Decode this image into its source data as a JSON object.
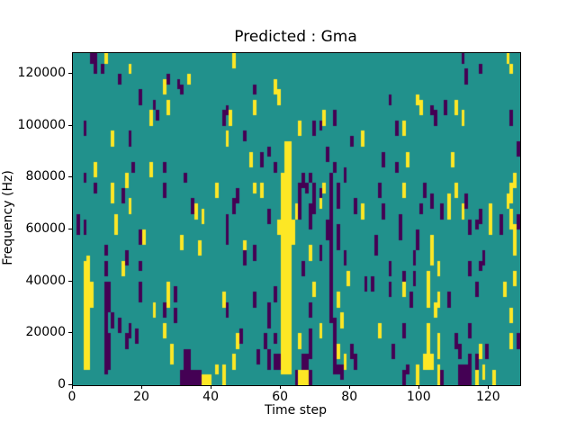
{
  "figure": {
    "title": "Predicted : Gma",
    "xlabel": "Time step",
    "ylabel": "Frequency (Hz)"
  },
  "chart_data": {
    "type": "heatmap",
    "title": "Predicted : Gma",
    "xlabel": "Time step",
    "ylabel": "Frequency (Hz)",
    "x_range": [
      0,
      129
    ],
    "y_range": [
      0,
      128000
    ],
    "x_ticks": [
      0,
      20,
      40,
      60,
      80,
      100,
      120
    ],
    "y_ticks": [
      0,
      20000,
      40000,
      60000,
      80000,
      100000,
      120000
    ],
    "grid": {
      "cols": 129,
      "rows": 64
    },
    "legend_position": "none",
    "gridlines": false,
    "colormap": "viridis (3 discrete levels)",
    "colors": {
      "0": "#440154",
      "1": "#21918c",
      "2": "#fde725"
    },
    "default_value": 1,
    "value_meaning": {
      "0": "low (purple)",
      "1": "mid (teal background)",
      "2": "high (yellow)"
    },
    "runs_format": "[col, row_start, row_end, value]; rows indexed from top (row 0 = 128000 Hz bin), inclusive; cols indexed from left (time step)",
    "runs": [
      [
        5,
        0,
        1,
        0
      ],
      [
        6,
        0,
        1,
        0
      ],
      [
        9,
        0,
        1,
        2
      ],
      [
        6,
        2,
        3,
        0
      ],
      [
        8,
        2,
        3,
        0
      ],
      [
        16,
        2,
        3,
        2
      ],
      [
        13,
        4,
        5,
        0
      ],
      [
        27,
        4,
        5,
        0
      ],
      [
        33,
        4,
        5,
        2
      ],
      [
        30,
        5,
        6,
        0
      ],
      [
        26,
        5,
        7,
        2
      ],
      [
        31,
        6,
        7,
        0
      ],
      [
        19,
        7,
        9,
        0
      ],
      [
        23,
        9,
        10,
        0
      ],
      [
        27,
        9,
        11,
        2
      ],
      [
        22,
        11,
        13,
        2
      ],
      [
        24,
        11,
        12,
        0
      ],
      [
        43,
        11,
        13,
        0
      ],
      [
        3,
        13,
        15,
        0
      ],
      [
        11,
        15,
        17,
        2
      ],
      [
        16,
        15,
        17,
        0
      ],
      [
        6,
        21,
        23,
        2
      ],
      [
        17,
        21,
        22,
        0
      ],
      [
        22,
        21,
        23,
        2
      ],
      [
        26,
        21,
        22,
        0
      ],
      [
        3,
        23,
        24,
        0
      ],
      [
        15,
        23,
        25,
        2
      ],
      [
        32,
        23,
        24,
        0
      ],
      [
        6,
        25,
        26,
        0
      ],
      [
        11,
        25,
        28,
        2
      ],
      [
        26,
        25,
        27,
        0
      ],
      [
        14,
        26,
        28,
        0
      ],
      [
        41,
        25,
        27,
        2
      ],
      [
        16,
        28,
        30,
        2
      ],
      [
        34,
        28,
        30,
        0
      ],
      [
        35,
        29,
        31,
        2
      ],
      [
        37,
        30,
        32,
        2
      ],
      [
        46,
        0,
        2,
        2
      ],
      [
        52,
        6,
        7,
        0
      ],
      [
        58,
        5,
        7,
        2
      ],
      [
        59,
        7,
        9,
        2
      ],
      [
        44,
        10,
        11,
        0
      ],
      [
        52,
        9,
        11,
        2
      ],
      [
        45,
        11,
        13,
        2
      ],
      [
        72,
        11,
        13,
        2
      ],
      [
        75,
        11,
        13,
        0
      ],
      [
        65,
        13,
        15,
        2
      ],
      [
        69,
        13,
        15,
        0
      ],
      [
        71,
        13,
        14,
        0
      ],
      [
        44,
        15,
        17,
        2
      ],
      [
        49,
        15,
        16,
        0
      ],
      [
        80,
        16,
        17,
        0
      ],
      [
        83,
        15,
        17,
        2
      ],
      [
        61,
        17,
        61,
        2
      ],
      [
        62,
        17,
        61,
        2
      ],
      [
        60,
        23,
        61,
        2
      ],
      [
        59,
        32,
        34,
        2
      ],
      [
        63,
        32,
        36,
        2
      ],
      [
        51,
        19,
        21,
        2
      ],
      [
        54,
        19,
        21,
        0
      ],
      [
        56,
        18,
        19,
        0
      ],
      [
        73,
        18,
        20,
        0
      ],
      [
        58,
        21,
        22,
        0
      ],
      [
        75,
        21,
        22,
        0
      ],
      [
        78,
        22,
        24,
        0
      ],
      [
        74,
        23,
        51,
        0
      ],
      [
        66,
        23,
        25,
        0
      ],
      [
        68,
        23,
        24,
        0
      ],
      [
        65,
        25,
        31,
        0
      ],
      [
        67,
        25,
        26,
        0
      ],
      [
        72,
        25,
        26,
        2
      ],
      [
        69,
        25,
        30,
        0
      ],
      [
        52,
        25,
        26,
        2
      ],
      [
        54,
        25,
        27,
        2
      ],
      [
        47,
        26,
        28,
        0
      ],
      [
        71,
        26,
        28,
        0
      ],
      [
        71,
        28,
        29,
        2
      ],
      [
        76,
        25,
        29,
        0
      ],
      [
        46,
        28,
        30,
        0
      ],
      [
        64,
        29,
        31,
        2
      ],
      [
        68,
        29,
        33,
        0
      ],
      [
        81,
        28,
        30,
        0
      ],
      [
        83,
        29,
        31,
        2
      ],
      [
        56,
        30,
        32,
        0
      ],
      [
        44,
        31,
        34,
        0
      ],
      [
        112,
        0,
        1,
        0
      ],
      [
        125,
        0,
        1,
        2
      ],
      [
        117,
        2,
        3,
        0
      ],
      [
        126,
        2,
        3,
        2
      ],
      [
        113,
        3,
        5,
        0
      ],
      [
        91,
        8,
        9,
        0
      ],
      [
        99,
        8,
        9,
        2
      ],
      [
        100,
        9,
        11,
        2
      ],
      [
        103,
        10,
        11,
        0
      ],
      [
        107,
        9,
        11,
        0
      ],
      [
        110,
        9,
        11,
        2
      ],
      [
        104,
        11,
        13,
        0
      ],
      [
        112,
        11,
        13,
        2
      ],
      [
        126,
        11,
        13,
        0
      ],
      [
        93,
        13,
        15,
        0
      ],
      [
        95,
        13,
        15,
        2
      ],
      [
        128,
        17,
        19,
        0
      ],
      [
        89,
        19,
        21,
        0
      ],
      [
        96,
        19,
        21,
        2
      ],
      [
        109,
        19,
        21,
        2
      ],
      [
        93,
        21,
        22,
        0
      ],
      [
        127,
        23,
        25,
        2
      ],
      [
        88,
        25,
        27,
        0
      ],
      [
        95,
        25,
        27,
        2
      ],
      [
        101,
        25,
        27,
        0
      ],
      [
        110,
        25,
        27,
        2
      ],
      [
        126,
        25,
        28,
        2
      ],
      [
        103,
        27,
        29,
        0
      ],
      [
        108,
        27,
        31,
        2
      ],
      [
        113,
        27,
        29,
        0
      ],
      [
        125,
        27,
        29,
        2
      ],
      [
        100,
        29,
        30,
        0
      ],
      [
        106,
        29,
        31,
        0
      ],
      [
        112,
        29,
        31,
        2
      ],
      [
        117,
        30,
        32,
        0
      ],
      [
        89,
        29,
        31,
        0
      ],
      [
        120,
        29,
        34,
        2
      ],
      [
        123,
        31,
        34,
        0
      ],
      [
        126,
        30,
        33,
        2
      ],
      [
        128,
        31,
        33,
        0
      ],
      [
        1,
        31,
        34,
        0
      ],
      [
        3,
        32,
        34,
        0
      ],
      [
        12,
        31,
        34,
        2
      ],
      [
        19,
        34,
        36,
        0
      ],
      [
        20,
        34,
        36,
        2
      ],
      [
        31,
        35,
        37,
        2
      ],
      [
        9,
        37,
        38,
        0
      ],
      [
        36,
        36,
        38,
        2
      ],
      [
        15,
        38,
        40,
        0
      ],
      [
        4,
        39,
        60,
        2
      ],
      [
        3,
        40,
        60,
        2
      ],
      [
        5,
        44,
        48,
        2
      ],
      [
        9,
        40,
        42,
        0
      ],
      [
        14,
        40,
        42,
        2
      ],
      [
        19,
        40,
        41,
        0
      ],
      [
        9,
        44,
        51,
        0
      ],
      [
        10,
        44,
        49,
        0
      ],
      [
        19,
        44,
        47,
        0
      ],
      [
        27,
        44,
        46,
        2
      ],
      [
        29,
        45,
        47,
        0
      ],
      [
        27,
        47,
        48,
        2
      ],
      [
        23,
        48,
        50,
        2
      ],
      [
        26,
        48,
        50,
        0
      ],
      [
        29,
        49,
        51,
        0
      ],
      [
        11,
        50,
        52,
        0
      ],
      [
        13,
        51,
        53,
        0
      ],
      [
        9,
        52,
        54,
        0
      ],
      [
        16,
        52,
        54,
        0
      ],
      [
        26,
        52,
        54,
        2
      ],
      [
        18,
        53,
        55,
        0
      ],
      [
        15,
        54,
        56,
        0
      ],
      [
        9,
        54,
        61,
        0
      ],
      [
        10,
        54,
        57,
        0
      ],
      [
        28,
        56,
        59,
        2
      ],
      [
        32,
        57,
        60,
        0
      ],
      [
        33,
        57,
        60,
        0
      ],
      [
        10,
        57,
        60,
        0
      ],
      [
        31,
        61,
        63,
        0
      ],
      [
        32,
        61,
        63,
        0
      ],
      [
        33,
        61,
        63,
        0
      ],
      [
        34,
        61,
        63,
        0
      ],
      [
        35,
        61,
        63,
        0
      ],
      [
        36,
        61,
        63,
        0
      ],
      [
        37,
        62,
        63,
        2
      ],
      [
        38,
        62,
        63,
        2
      ],
      [
        39,
        62,
        63,
        2
      ],
      [
        41,
        60,
        61,
        2
      ],
      [
        73,
        32,
        35,
        0
      ],
      [
        76,
        33,
        37,
        0
      ],
      [
        75,
        51,
        61,
        0
      ],
      [
        44,
        34,
        36,
        0
      ],
      [
        49,
        36,
        38,
        2
      ],
      [
        52,
        37,
        39,
        0
      ],
      [
        49,
        38,
        40,
        0
      ],
      [
        68,
        37,
        39,
        2
      ],
      [
        71,
        37,
        39,
        0
      ],
      [
        78,
        38,
        40,
        0
      ],
      [
        66,
        40,
        42,
        0
      ],
      [
        79,
        42,
        44,
        2
      ],
      [
        84,
        43,
        45,
        0
      ],
      [
        86,
        43,
        45,
        0
      ],
      [
        58,
        45,
        47,
        0
      ],
      [
        69,
        44,
        46,
        2
      ],
      [
        76,
        46,
        48,
        2
      ],
      [
        52,
        46,
        48,
        0
      ],
      [
        43,
        46,
        48,
        2
      ],
      [
        56,
        48,
        50,
        0
      ],
      [
        44,
        48,
        50,
        0
      ],
      [
        68,
        48,
        50,
        0
      ],
      [
        77,
        50,
        52,
        2
      ],
      [
        56,
        50,
        52,
        0
      ],
      [
        71,
        52,
        54,
        2
      ],
      [
        68,
        53,
        58,
        0
      ],
      [
        48,
        53,
        55,
        0
      ],
      [
        47,
        54,
        56,
        2
      ],
      [
        55,
        54,
        56,
        0
      ],
      [
        58,
        54,
        55,
        0
      ],
      [
        65,
        54,
        56,
        2
      ],
      [
        76,
        56,
        58,
        2
      ],
      [
        80,
        56,
        58,
        0
      ],
      [
        53,
        57,
        59,
        0
      ],
      [
        56,
        57,
        60,
        0
      ],
      [
        58,
        58,
        60,
        0
      ],
      [
        59,
        58,
        60,
        0
      ],
      [
        46,
        58,
        60,
        2
      ],
      [
        66,
        58,
        60,
        0
      ],
      [
        67,
        58,
        60,
        0
      ],
      [
        78,
        58,
        60,
        2
      ],
      [
        81,
        58,
        60,
        0
      ],
      [
        75,
        60,
        61,
        0
      ],
      [
        76,
        60,
        61,
        0
      ],
      [
        77,
        60,
        62,
        0
      ],
      [
        64,
        61,
        63,
        0
      ],
      [
        65,
        61,
        63,
        2
      ],
      [
        66,
        61,
        63,
        2
      ],
      [
        67,
        61,
        63,
        2
      ],
      [
        68,
        61,
        63,
        0
      ],
      [
        43,
        60,
        63,
        2
      ],
      [
        94,
        31,
        35,
        0
      ],
      [
        114,
        32,
        34,
        0
      ],
      [
        116,
        32,
        33,
        0
      ],
      [
        87,
        35,
        38,
        0
      ],
      [
        99,
        34,
        37,
        0
      ],
      [
        103,
        35,
        37,
        2
      ],
      [
        127,
        33,
        38,
        2
      ],
      [
        98,
        38,
        40,
        0
      ],
      [
        103,
        38,
        40,
        2
      ],
      [
        118,
        38,
        40,
        0
      ],
      [
        91,
        40,
        42,
        0
      ],
      [
        105,
        40,
        42,
        2
      ],
      [
        114,
        40,
        42,
        0
      ],
      [
        117,
        40,
        41,
        0
      ],
      [
        95,
        42,
        44,
        0
      ],
      [
        98,
        42,
        44,
        0
      ],
      [
        95,
        44,
        46,
        2
      ],
      [
        102,
        42,
        48,
        2
      ],
      [
        91,
        44,
        46,
        0
      ],
      [
        97,
        46,
        48,
        0
      ],
      [
        105,
        46,
        48,
        2
      ],
      [
        108,
        46,
        48,
        0
      ],
      [
        116,
        44,
        46,
        0
      ],
      [
        124,
        44,
        46,
        2
      ],
      [
        127,
        42,
        44,
        2
      ],
      [
        104,
        48,
        50,
        2
      ],
      [
        126,
        49,
        51,
        2
      ],
      [
        88,
        52,
        54,
        2
      ],
      [
        95,
        52,
        54,
        0
      ],
      [
        102,
        52,
        60,
        2
      ],
      [
        105,
        54,
        58,
        2
      ],
      [
        110,
        54,
        56,
        0
      ],
      [
        114,
        52,
        54,
        0
      ],
      [
        92,
        56,
        58,
        0
      ],
      [
        111,
        56,
        58,
        0
      ],
      [
        117,
        56,
        58,
        2
      ],
      [
        119,
        56,
        58,
        0
      ],
      [
        126,
        54,
        56,
        2
      ],
      [
        101,
        58,
        60,
        2
      ],
      [
        103,
        58,
        60,
        2
      ],
      [
        114,
        58,
        63,
        0
      ],
      [
        116,
        58,
        60,
        0
      ],
      [
        118,
        60,
        62,
        2
      ],
      [
        96,
        60,
        61,
        0
      ],
      [
        99,
        60,
        63,
        2
      ],
      [
        105,
        60,
        63,
        2
      ],
      [
        95,
        61,
        63,
        0
      ],
      [
        106,
        61,
        63,
        0
      ],
      [
        111,
        60,
        63,
        0
      ],
      [
        112,
        60,
        63,
        0
      ],
      [
        113,
        60,
        63,
        0
      ],
      [
        116,
        61,
        63,
        2
      ],
      [
        121,
        61,
        63,
        2
      ],
      [
        128,
        54,
        56,
        0
      ]
    ]
  }
}
